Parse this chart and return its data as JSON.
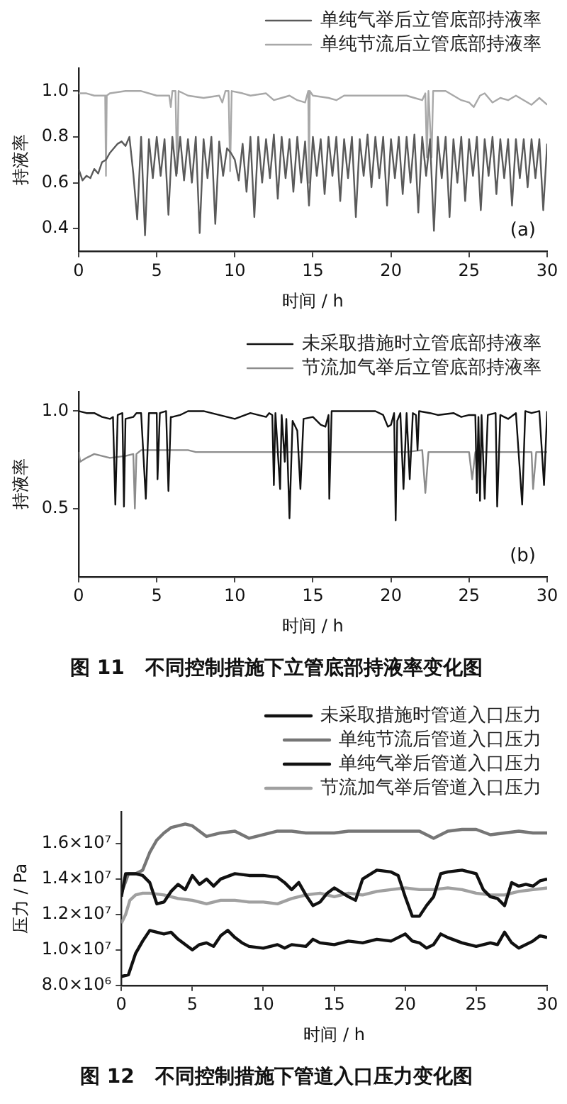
{
  "chart_data": [
    {
      "type": "line",
      "xlabel": "时间 / h",
      "ylabel": "持液率",
      "annotations": [
        "(a)"
      ],
      "legend": "top right",
      "marker": "none",
      "xlim": [
        0,
        30
      ],
      "xticks": [
        0,
        5,
        10,
        15,
        20,
        25,
        30
      ],
      "ylim": [
        0.3,
        1.1
      ],
      "yticks": [
        {
          "value": 0.4,
          "label": "0.4"
        },
        {
          "value": 0.6,
          "label": "0.6"
        },
        {
          "value": 0.8,
          "label": "0.8"
        },
        {
          "value": 1,
          "label": "1.0"
        }
      ],
      "series": [
        {
          "name": "单纯气举后立管底部持液率",
          "color": "#5a5a5a",
          "x": [
            0,
            0.25,
            0.5,
            0.75,
            1,
            1.25,
            1.5,
            1.75,
            2,
            2.25,
            2.5,
            2.75,
            3,
            3.25,
            3.5,
            3.75,
            4,
            4.25,
            4.5,
            4.75,
            5,
            5.25,
            5.5,
            5.75,
            6,
            6.25,
            6.5,
            6.75,
            7,
            7.25,
            7.5,
            7.75,
            8,
            8.25,
            8.5,
            8.75,
            9,
            9.25,
            9.5,
            9.75,
            10,
            10.25,
            10.5,
            10.75,
            11,
            11.25,
            11.5,
            11.75,
            12,
            12.25,
            12.5,
            12.75,
            13,
            13.25,
            13.5,
            13.75,
            14,
            14.25,
            14.5,
            14.75,
            15,
            15.25,
            15.5,
            15.75,
            16,
            16.25,
            16.5,
            16.75,
            17,
            17.25,
            17.5,
            17.75,
            18,
            18.25,
            18.5,
            18.75,
            19,
            19.25,
            19.5,
            19.75,
            20,
            20.25,
            20.5,
            20.75,
            21,
            21.25,
            21.5,
            21.75,
            22,
            22.25,
            22.5,
            22.75,
            23,
            23.25,
            23.5,
            23.75,
            24,
            24.25,
            24.5,
            24.75,
            25,
            25.25,
            25.5,
            25.75,
            26,
            26.25,
            26.5,
            26.75,
            27,
            27.25,
            27.5,
            27.75,
            28,
            28.25,
            28.5,
            28.75,
            29,
            29.25,
            29.5,
            29.75,
            30
          ],
          "values": [
            0.66,
            0.61,
            0.63,
            0.62,
            0.66,
            0.64,
            0.69,
            0.7,
            0.73,
            0.75,
            0.77,
            0.78,
            0.76,
            0.8,
            0.64,
            0.44,
            0.8,
            0.37,
            0.79,
            0.62,
            0.8,
            0.63,
            0.79,
            0.46,
            0.8,
            0.63,
            0.8,
            0.61,
            0.79,
            0.6,
            0.8,
            0.38,
            0.79,
            0.62,
            0.8,
            0.42,
            0.78,
            0.63,
            0.75,
            0.73,
            0.7,
            0.61,
            0.77,
            0.56,
            0.8,
            0.45,
            0.8,
            0.6,
            0.79,
            0.62,
            0.81,
            0.53,
            0.8,
            0.62,
            0.79,
            0.56,
            0.8,
            0.6,
            0.78,
            0.5,
            0.8,
            0.63,
            0.79,
            0.55,
            0.8,
            0.63,
            0.8,
            0.52,
            0.79,
            0.62,
            0.8,
            0.45,
            0.79,
            0.63,
            0.81,
            0.58,
            0.8,
            0.62,
            0.8,
            0.5,
            0.79,
            0.62,
            0.8,
            0.55,
            0.8,
            0.6,
            0.81,
            0.47,
            0.8,
            0.63,
            0.79,
            0.39,
            0.8,
            0.62,
            0.8,
            0.45,
            0.79,
            0.6,
            0.8,
            0.52,
            0.79,
            0.63,
            0.8,
            0.48,
            0.79,
            0.63,
            0.8,
            0.55,
            0.79,
            0.62,
            0.79,
            0.5,
            0.79,
            0.62,
            0.79,
            0.58,
            0.79,
            0.62,
            0.79,
            0.48,
            0.77
          ]
        },
        {
          "name": "单纯节流后立管底部持液率",
          "color": "#a8a8a8",
          "x": [
            0,
            0.5,
            1,
            1.5,
            1.7,
            1.75,
            1.8,
            2,
            3,
            4,
            5,
            5.8,
            5.9,
            6,
            6.2,
            6.3,
            6.4,
            7,
            8,
            9,
            9.2,
            9.4,
            9.6,
            9.7,
            9.8,
            10.5,
            11,
            12,
            12.5,
            13,
            13.5,
            14,
            14.5,
            14.7,
            14.75,
            14.8,
            15,
            16,
            16.5,
            17,
            18,
            19,
            20,
            21,
            21.5,
            22,
            22.2,
            22.3,
            22.4,
            22.6,
            22.7,
            23,
            23.5,
            24,
            24.5,
            25,
            25.3,
            25.7,
            26,
            26.5,
            27,
            27.5,
            28,
            28.5,
            29,
            29.5,
            30
          ],
          "values": [
            0.99,
            0.99,
            0.98,
            0.98,
            0.98,
            0.63,
            0.98,
            0.99,
            1,
            1,
            0.98,
            0.98,
            0.93,
            1,
            1,
            0.64,
            1,
            0.98,
            0.97,
            0.98,
            0.95,
            1,
            1,
            0.65,
            1,
            0.99,
            0.98,
            0.99,
            0.96,
            0.97,
            0.98,
            0.96,
            0.95,
            1,
            0.6,
            1,
            0.98,
            0.97,
            0.96,
            0.98,
            0.98,
            0.98,
            0.98,
            0.98,
            0.97,
            0.96,
            0.99,
            0.71,
            1,
            0.71,
            1,
            1,
            1,
            0.98,
            0.96,
            0.95,
            0.93,
            0.98,
            0.99,
            0.95,
            0.97,
            0.96,
            0.98,
            0.96,
            0.94,
            0.97,
            0.94
          ]
        }
      ]
    },
    {
      "type": "line",
      "title": "图 11   不同控制措施下立管底部持液率变化图",
      "xlabel": "时间 / h",
      "ylabel": "持液率",
      "annotations": [
        "(b)"
      ],
      "legend": "top right",
      "marker": "none",
      "xlim": [
        0,
        30
      ],
      "xticks": [
        0,
        5,
        10,
        15,
        20,
        25,
        30
      ],
      "ylim": [
        0.15,
        1.1
      ],
      "yticks": [
        {
          "value": 0.5,
          "label": "0.5"
        },
        {
          "value": 1,
          "label": "1.0"
        }
      ],
      "series": [
        {
          "name": "未采取措施时立管底部持液率",
          "color": "#111111",
          "x": [
            0,
            0.5,
            1,
            1.5,
            2,
            2.2,
            2.35,
            2.5,
            2.8,
            2.9,
            3,
            3.5,
            3.6,
            3.7,
            4,
            4.3,
            4.5,
            5,
            5.05,
            5.2,
            5.6,
            5.75,
            5.9,
            6,
            6.5,
            7,
            8,
            9,
            9.5,
            10,
            11,
            11.5,
            12,
            12.2,
            12.4,
            12.5,
            12.6,
            12.9,
            13,
            13.2,
            13.3,
            13.5,
            13.7,
            14,
            14.2,
            14.4,
            15,
            15.5,
            15.8,
            16,
            16.05,
            16.2,
            17,
            18,
            19,
            19.5,
            19.8,
            20,
            20.2,
            20.3,
            20.4,
            20.6,
            20.8,
            21,
            21.2,
            21.4,
            21.6,
            21.7,
            21.8,
            22.5,
            23,
            24,
            24.5,
            25,
            25.4,
            25.5,
            25.6,
            25.7,
            25.8,
            26,
            26.2,
            26.7,
            26.8,
            27,
            27.5,
            28,
            28.4,
            28.6,
            29,
            29.5,
            29.8,
            30
          ],
          "values": [
            1,
            0.99,
            0.99,
            0.97,
            0.96,
            0.97,
            0.52,
            0.98,
            0.99,
            0.51,
            0.96,
            0.97,
            0.98,
            0.99,
            0.99,
            0.55,
            0.99,
            0.99,
            0.65,
            0.99,
            1,
            0.59,
            0.97,
            0.97,
            0.98,
            1,
            1,
            0.98,
            0.97,
            0.96,
            0.99,
            0.98,
            0.97,
            0.99,
            0.98,
            0.62,
            0.99,
            0.6,
            0.98,
            0.74,
            0.96,
            0.45,
            0.95,
            0.9,
            0.6,
            0.96,
            0.97,
            0.93,
            0.92,
            0.98,
            0.55,
            1,
            1,
            1,
            1,
            0.98,
            0.92,
            0.93,
            0.99,
            0.44,
            0.95,
            0.99,
            0.6,
            0.99,
            0.65,
            0.99,
            0.98,
            0.8,
            1,
            0.99,
            0.98,
            0.99,
            0.97,
            0.98,
            0.98,
            0.58,
            0.97,
            0.54,
            0.98,
            0.55,
            0.98,
            0.99,
            0.51,
            0.98,
            0.96,
            0.99,
            0.52,
            1,
            0.99,
            1,
            0.62,
            1
          ]
        },
        {
          "name": "节流加气举后立管底部持液率",
          "color": "#8c8c8c",
          "x": [
            0,
            0.1,
            0.5,
            1,
            1.5,
            2,
            3,
            3.5,
            3.6,
            3.7,
            4,
            5,
            6,
            6.5,
            7,
            7.5,
            8,
            10,
            12,
            14,
            16,
            18,
            20,
            21,
            22,
            22.2,
            22.4,
            24,
            25,
            25.2,
            25.4,
            27,
            28,
            29,
            29.1,
            29.3,
            30
          ],
          "values": [
            0.79,
            0.74,
            0.76,
            0.78,
            0.77,
            0.76,
            0.77,
            0.78,
            0.5,
            0.78,
            0.8,
            0.8,
            0.8,
            0.8,
            0.8,
            0.79,
            0.79,
            0.79,
            0.79,
            0.79,
            0.79,
            0.79,
            0.79,
            0.79,
            0.8,
            0.58,
            0.79,
            0.79,
            0.79,
            0.65,
            0.79,
            0.79,
            0.79,
            0.79,
            0.6,
            0.79,
            0.79
          ]
        }
      ]
    },
    {
      "type": "line",
      "title": "图 12   不同控制措施下管道入口压力变化图",
      "xlabel": "时间 / h",
      "ylabel": "压力 / Pa",
      "legend": "top right",
      "marker": "none",
      "xlim": [
        0,
        30
      ],
      "xticks": [
        0,
        5,
        10,
        15,
        20,
        25,
        30
      ],
      "ylim": [
        8000000,
        17800000
      ],
      "yticks": [
        {
          "value": 8000000,
          "label": "8.0×10⁶"
        },
        {
          "value": 10000000,
          "label": "1.0×10⁷"
        },
        {
          "value": 12000000,
          "label": "1.2×10⁷"
        },
        {
          "value": 14000000,
          "label": "1.4×10⁷"
        },
        {
          "value": 16000000,
          "label": "1.6×10⁷"
        }
      ],
      "series": [
        {
          "name": "未采取措施时管道入口压力",
          "color": "#111111",
          "x": [
            0,
            0.3,
            1,
            1.5,
            2,
            2.5,
            3,
            3.5,
            4,
            4.5,
            5,
            5.5,
            6,
            6.5,
            7,
            8,
            9,
            10,
            11,
            11.5,
            12,
            12.5,
            13,
            13.5,
            14,
            14.5,
            15,
            16,
            16.5,
            17,
            18,
            19,
            19.5,
            20,
            20.5,
            21,
            21.5,
            22,
            22.5,
            23,
            24,
            25,
            25.5,
            26,
            26.5,
            27,
            27.5,
            28,
            28.5,
            29,
            29.5,
            30
          ],
          "values": [
            13000000,
            14300000,
            14300000,
            14200000,
            13800000,
            12600000,
            12700000,
            13300000,
            13700000,
            13400000,
            14200000,
            13700000,
            14000000,
            13600000,
            14000000,
            14300000,
            14200000,
            14200000,
            14100000,
            13800000,
            13400000,
            13800000,
            13100000,
            12500000,
            12700000,
            13200000,
            13500000,
            13000000,
            12800000,
            14000000,
            14500000,
            14400000,
            14200000,
            13000000,
            11900000,
            11900000,
            12500000,
            13000000,
            14300000,
            14400000,
            14500000,
            14300000,
            13400000,
            13000000,
            12900000,
            12500000,
            13800000,
            13600000,
            13700000,
            13600000,
            13900000,
            14000000
          ]
        },
        {
          "name": "单纯节流后管道入口压力",
          "color": "#767676",
          "x": [
            0,
            0.5,
            1,
            1.5,
            2,
            2.5,
            3,
            3.5,
            4,
            4.5,
            5,
            5.5,
            6,
            6.5,
            7,
            8,
            9,
            10,
            11,
            12,
            13,
            14,
            15,
            16,
            17,
            18,
            19,
            20,
            21,
            22,
            23,
            24,
            25,
            26,
            27,
            28,
            29,
            30
          ],
          "values": [
            13200000,
            14300000,
            14300000,
            14500000,
            15500000,
            16200000,
            16600000,
            16900000,
            17000000,
            17100000,
            17000000,
            16700000,
            16400000,
            16500000,
            16600000,
            16700000,
            16300000,
            16500000,
            16700000,
            16700000,
            16600000,
            16600000,
            16600000,
            16700000,
            16700000,
            16700000,
            16700000,
            16700000,
            16700000,
            16300000,
            16700000,
            16800000,
            16800000,
            16500000,
            16600000,
            16700000,
            16600000,
            16600000
          ]
        },
        {
          "name": "单纯气举后管道入口压力",
          "color": "#111111",
          "x": [
            0,
            0.5,
            1,
            1.5,
            2,
            2.5,
            3,
            3.5,
            4,
            5,
            5.5,
            6,
            6.5,
            7,
            7.5,
            8,
            8.5,
            9,
            10,
            11,
            11.5,
            12,
            13,
            13.5,
            14,
            15,
            16,
            17,
            18,
            19,
            20,
            20.5,
            21,
            21.5,
            22,
            22.5,
            23,
            24,
            25,
            26,
            26.5,
            27,
            27.5,
            28,
            29,
            29.5,
            30
          ],
          "values": [
            8500000,
            8600000,
            9800000,
            10500000,
            11100000,
            11000000,
            10900000,
            11000000,
            10600000,
            10000000,
            10300000,
            10400000,
            10200000,
            10800000,
            11100000,
            10700000,
            10400000,
            10200000,
            10100000,
            10300000,
            10100000,
            10300000,
            10200000,
            10600000,
            10400000,
            10300000,
            10500000,
            10400000,
            10600000,
            10500000,
            10900000,
            10500000,
            10400000,
            10100000,
            10300000,
            10900000,
            10700000,
            10400000,
            10200000,
            10400000,
            10300000,
            11000000,
            10400000,
            10100000,
            10500000,
            10800000,
            10700000
          ]
        },
        {
          "name": "节流加气举后管道入口压力",
          "color": "#a0a0a0",
          "x": [
            0,
            0.3,
            0.6,
            1,
            1.5,
            2,
            3,
            4,
            5,
            6,
            7,
            8,
            9,
            10,
            11,
            12,
            13,
            14,
            15,
            16,
            17,
            18,
            19,
            20,
            21,
            22,
            23,
            24,
            25,
            26,
            27,
            28,
            29,
            30
          ],
          "values": [
            11500000,
            12000000,
            12800000,
            13100000,
            13200000,
            13200000,
            13100000,
            12900000,
            12800000,
            12600000,
            12800000,
            12800000,
            12700000,
            12700000,
            12600000,
            12900000,
            13100000,
            13200000,
            13000000,
            13200000,
            13100000,
            13300000,
            13400000,
            13500000,
            13400000,
            13400000,
            13500000,
            13400000,
            13200000,
            13100000,
            13100000,
            13300000,
            13400000,
            13500000
          ]
        }
      ]
    }
  ]
}
